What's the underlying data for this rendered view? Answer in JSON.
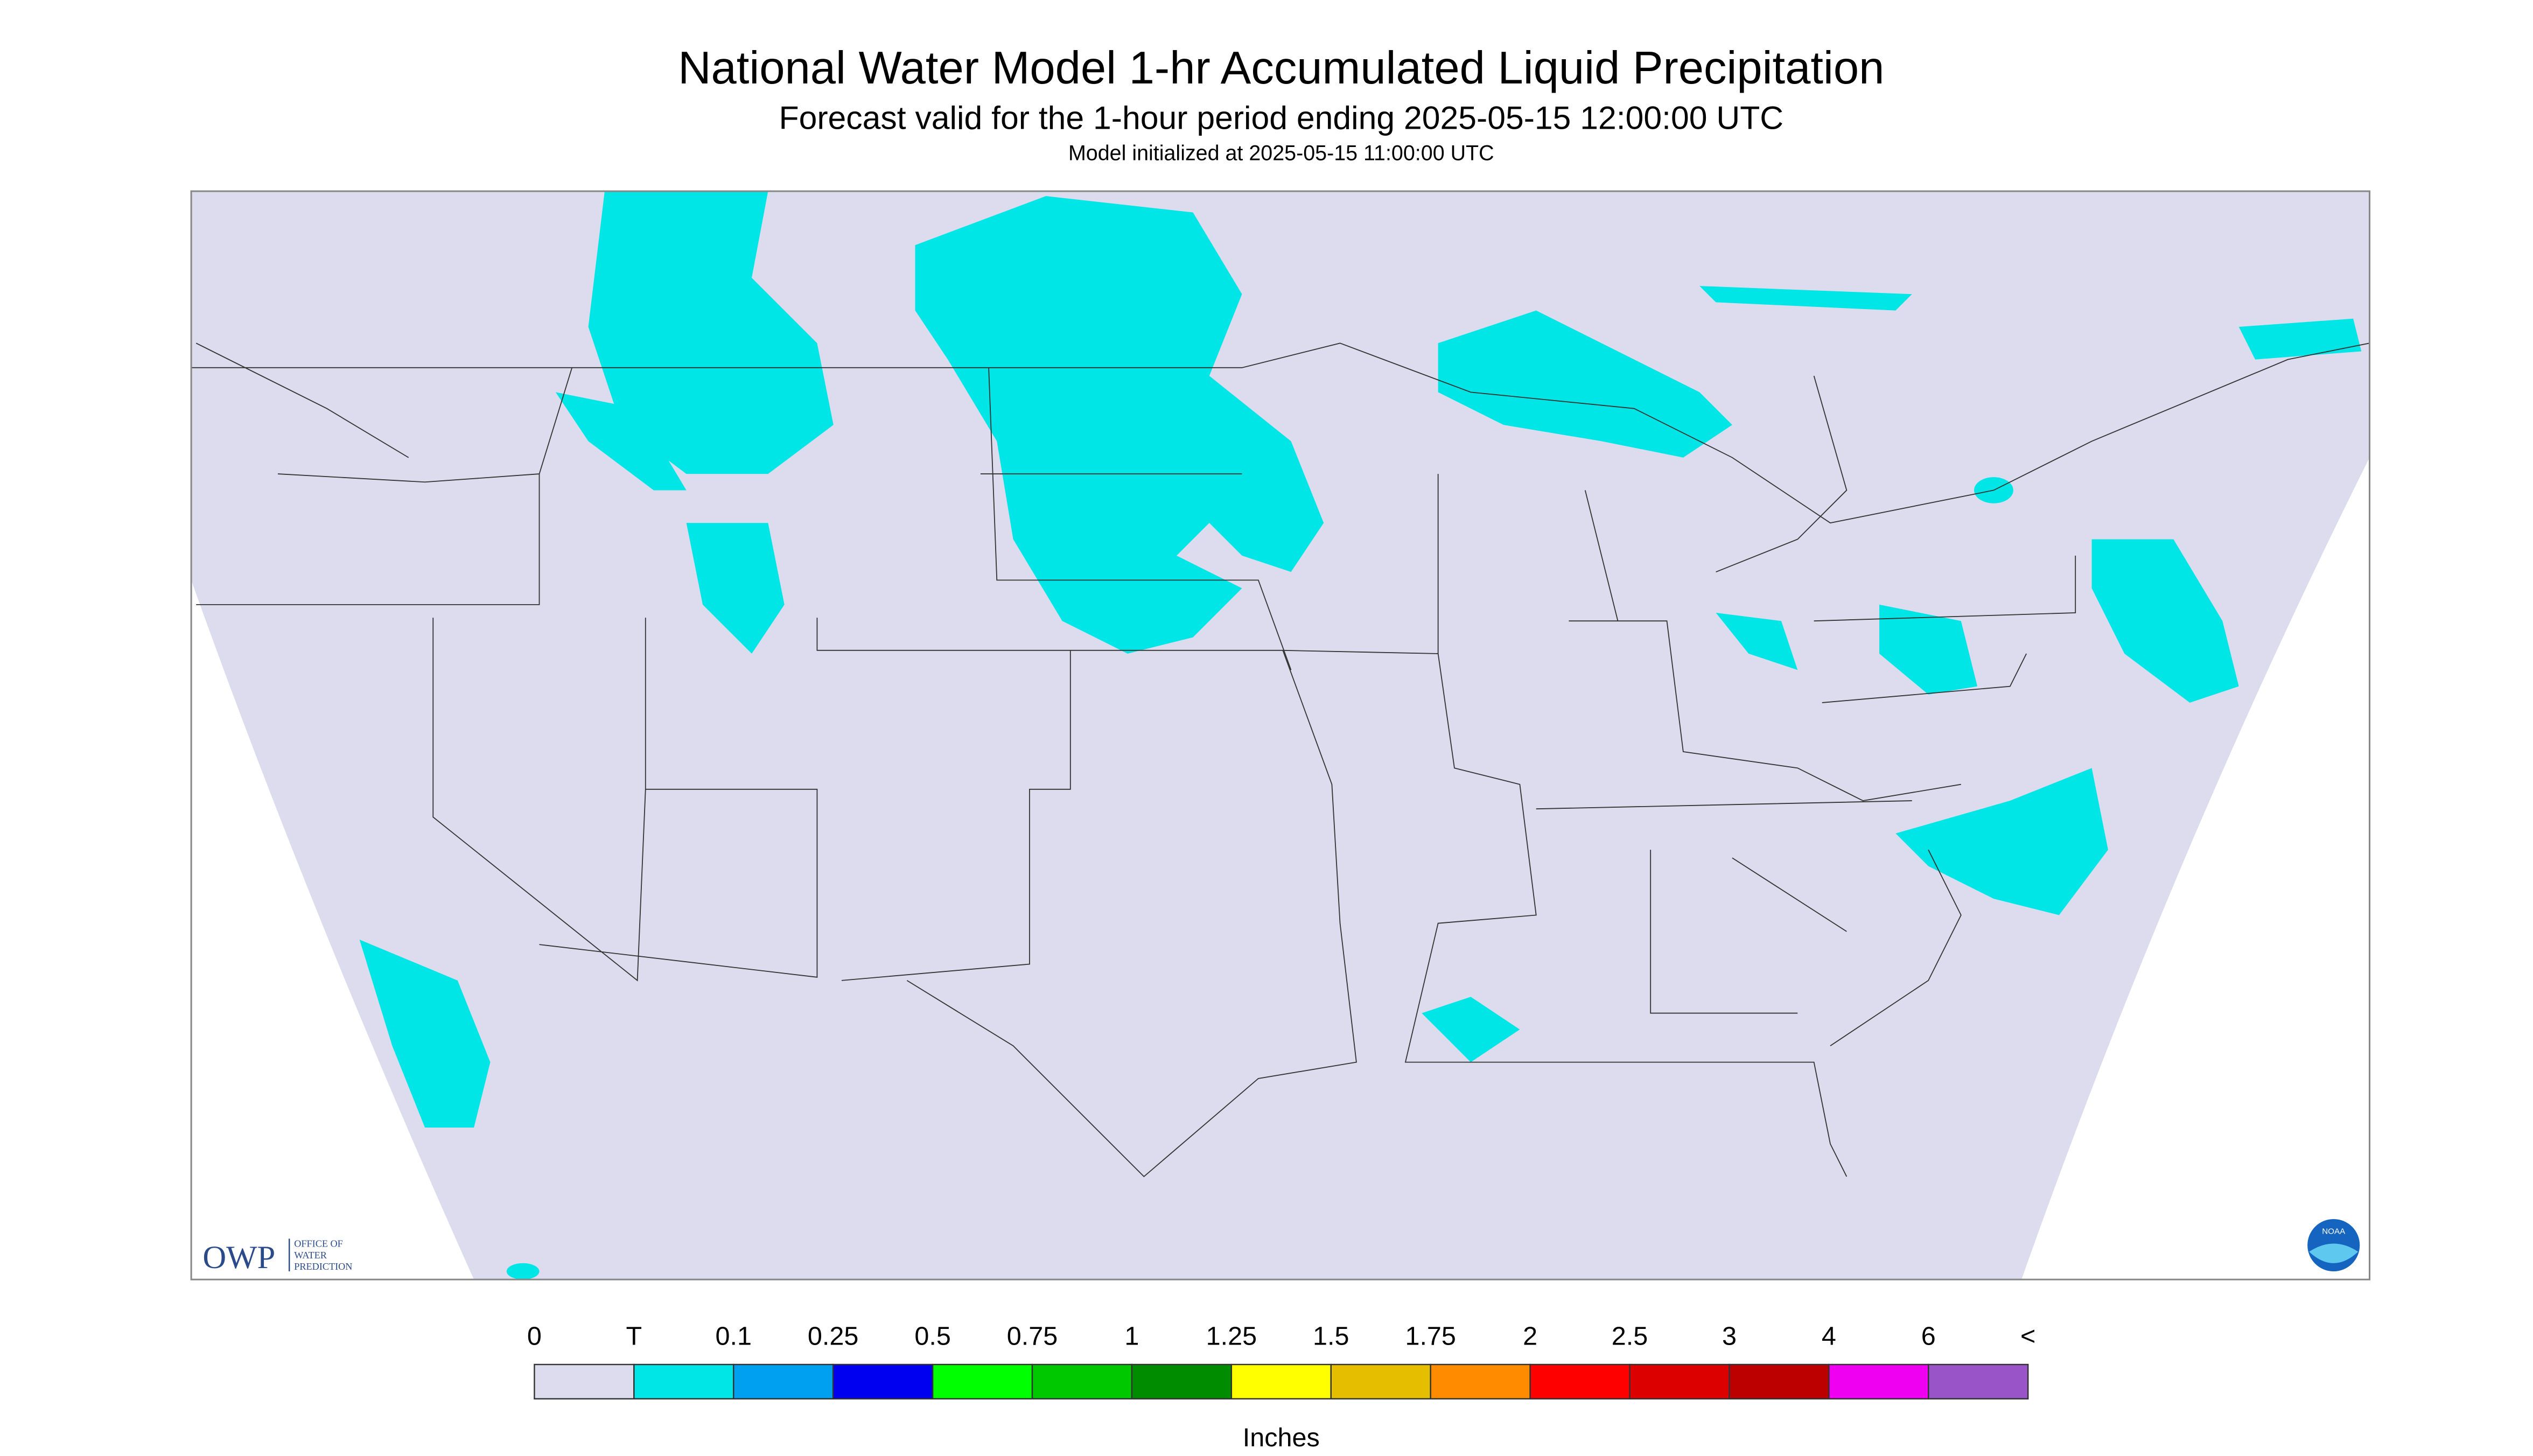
{
  "header": {
    "title": "National Water Model 1-hr Accumulated Liquid Precipitation",
    "subtitle": "Forecast valid for the 1-hour period ending 2025-05-15 12:00:00 UTC",
    "note": "Model initialized at 2025-05-15 11:00:00 UTC"
  },
  "map": {
    "background": "#dcdcee",
    "outside": "#ffffff",
    "logo": {
      "name": "OWP",
      "text": [
        "OFFICE OF",
        "WATER",
        "PREDICTION"
      ]
    },
    "agency": "NOAA"
  },
  "legend": {
    "labels": [
      "0",
      "T",
      "0.1",
      "0.25",
      "0.5",
      "0.75",
      "1",
      "1.25",
      "1.5",
      "1.75",
      "2",
      "2.5",
      "3",
      "4",
      "6",
      "<"
    ],
    "colors": [
      "#dcdcee",
      "#00e6e6",
      "#00a0f0",
      "#0000f0",
      "#00ff00",
      "#00c800",
      "#008c00",
      "#ffff00",
      "#e6be00",
      "#ff8c00",
      "#ff0000",
      "#dc0000",
      "#bc0000",
      "#f000f0",
      "#9955c8"
    ],
    "unit": "Inches"
  }
}
